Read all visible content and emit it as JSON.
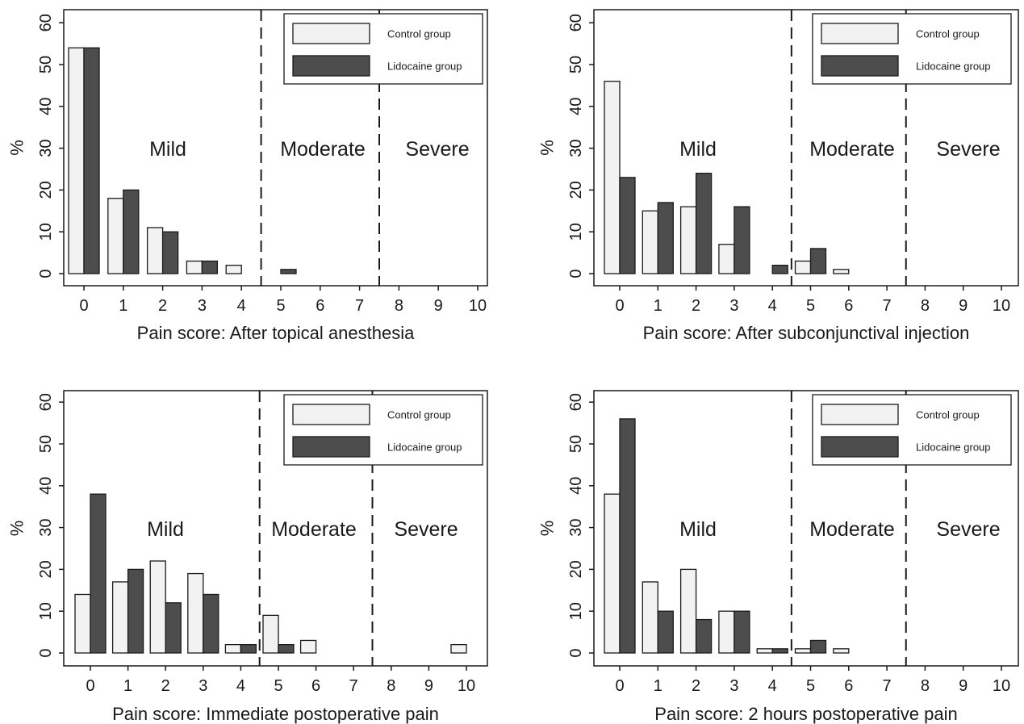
{
  "figure": {
    "legend_labels": [
      "Control group",
      "Lidocaine group"
    ],
    "y_axis_label": "%",
    "zone_labels": [
      "Mild",
      "Moderate",
      "Severe"
    ]
  },
  "colors": {
    "control": "#f2f2f2",
    "lidocaine": "#4d4d4d",
    "outline": "#1a1a1a"
  },
  "chart_data": [
    {
      "type": "bar",
      "xlabel": "Pain score: After topical anesthesia",
      "ylabel": "%",
      "ylim": [
        0,
        60
      ],
      "yticks": [
        0,
        10,
        20,
        30,
        40,
        50,
        60
      ],
      "categories": [
        "0",
        "1",
        "2",
        "3",
        "4",
        "5",
        "6",
        "7",
        "8",
        "9",
        "10"
      ],
      "series": [
        {
          "name": "Control group",
          "values": [
            54,
            18,
            11,
            3,
            2,
            0,
            0,
            0,
            0,
            0,
            0
          ]
        },
        {
          "name": "Lidocaine group",
          "values": [
            54,
            20,
            10,
            3,
            0,
            1,
            0,
            0,
            0,
            0,
            0
          ]
        }
      ],
      "zone_boundaries": [
        4.5,
        7.5
      ],
      "zones": [
        "Mild",
        "Moderate",
        "Severe"
      ],
      "legend_position": "top-right"
    },
    {
      "type": "bar",
      "xlabel": "Pain score: After subconjunctival injection",
      "ylabel": "%",
      "ylim": [
        0,
        60
      ],
      "yticks": [
        0,
        10,
        20,
        30,
        40,
        50,
        60
      ],
      "categories": [
        "0",
        "1",
        "2",
        "3",
        "4",
        "5",
        "6",
        "7",
        "8",
        "9",
        "10"
      ],
      "series": [
        {
          "name": "Control group",
          "values": [
            46,
            15,
            16,
            7,
            0,
            3,
            1,
            0,
            0,
            0,
            0
          ]
        },
        {
          "name": "Lidocaine group",
          "values": [
            23,
            17,
            24,
            16,
            2,
            6,
            0,
            0,
            0,
            0,
            0
          ]
        }
      ],
      "zone_boundaries": [
        4.5,
        7.5
      ],
      "zones": [
        "Mild",
        "Moderate",
        "Severe"
      ],
      "legend_position": "top-right"
    },
    {
      "type": "bar",
      "xlabel": "Pain score: Immediate postoperative pain",
      "ylabel": "%",
      "ylim": [
        0,
        60
      ],
      "yticks": [
        0,
        10,
        20,
        30,
        40,
        50,
        60
      ],
      "categories": [
        "0",
        "1",
        "2",
        "3",
        "4",
        "5",
        "6",
        "7",
        "8",
        "9",
        "10"
      ],
      "series": [
        {
          "name": "Control group",
          "values": [
            14,
            17,
            22,
            19,
            2,
            9,
            3,
            0,
            0,
            0,
            2
          ]
        },
        {
          "name": "Lidocaine group",
          "values": [
            38,
            20,
            12,
            14,
            2,
            2,
            0,
            0,
            0,
            0,
            0
          ]
        }
      ],
      "zone_boundaries": [
        4.5,
        7.5
      ],
      "zones": [
        "Mild",
        "Moderate",
        "Severe"
      ],
      "legend_position": "top-right"
    },
    {
      "type": "bar",
      "xlabel": "Pain score: 2 hours postoperative pain",
      "ylabel": "%",
      "ylim": [
        0,
        60
      ],
      "yticks": [
        0,
        10,
        20,
        30,
        40,
        50,
        60
      ],
      "categories": [
        "0",
        "1",
        "2",
        "3",
        "4",
        "5",
        "6",
        "7",
        "8",
        "9",
        "10"
      ],
      "series": [
        {
          "name": "Control group",
          "values": [
            38,
            17,
            20,
            10,
            1,
            1,
            1,
            0,
            0,
            0,
            0
          ]
        },
        {
          "name": "Lidocaine group",
          "values": [
            56,
            10,
            8,
            10,
            1,
            3,
            0,
            0,
            0,
            0,
            0
          ]
        }
      ],
      "zone_boundaries": [
        4.5,
        7.5
      ],
      "zones": [
        "Mild",
        "Moderate",
        "Severe"
      ],
      "legend_position": "top-right"
    }
  ]
}
